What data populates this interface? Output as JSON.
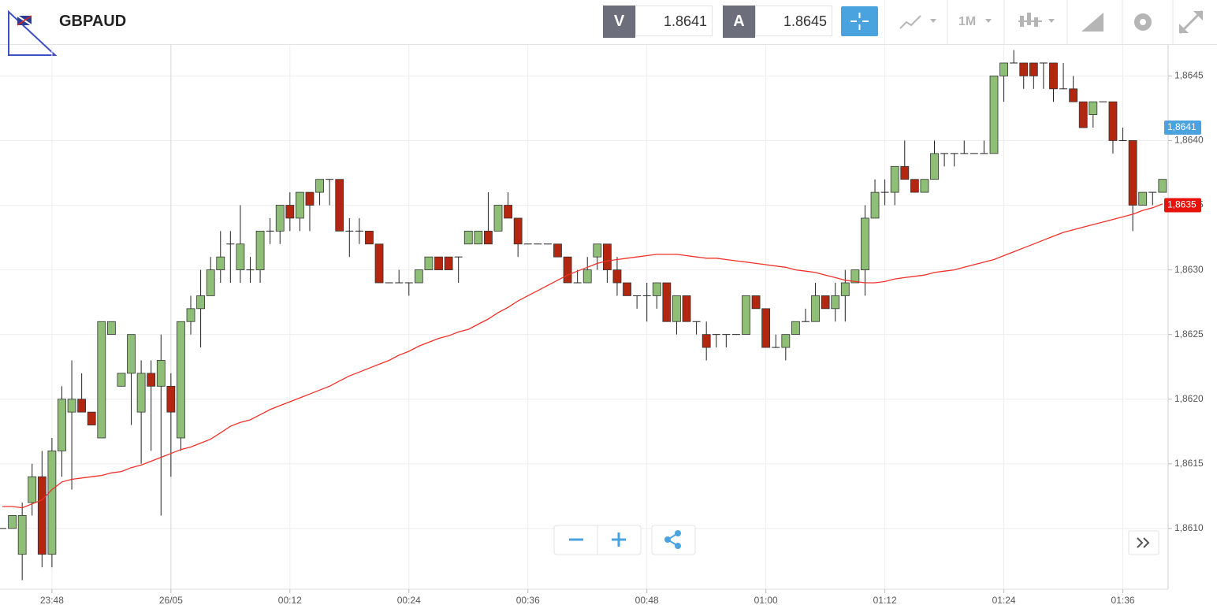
{
  "toolbar": {
    "symbol": "GBPAUD",
    "bid_label": "V",
    "bid": "1.8641",
    "ask_label": "A",
    "ask": "1.8645",
    "timeframe": "1M"
  },
  "chart_data": {
    "type": "candlestick",
    "categories": [
      null,
      null,
      null,
      null,
      null,
      "23:48",
      null,
      null,
      null,
      null,
      null,
      null,
      null,
      null,
      null,
      null,
      null,
      "26/05",
      null,
      null,
      null,
      null,
      null,
      null,
      null,
      null,
      null,
      null,
      null,
      "00:12",
      null,
      null,
      null,
      null,
      null,
      null,
      null,
      null,
      null,
      null,
      null,
      "00:24",
      null,
      null,
      null,
      null,
      null,
      null,
      null,
      null,
      null,
      null,
      null,
      "00:36",
      null,
      null,
      null,
      null,
      null,
      null,
      null,
      null,
      null,
      null,
      null,
      "00:48",
      null,
      null,
      null,
      null,
      null,
      null,
      null,
      null,
      null,
      null,
      null,
      "01:00",
      null,
      null,
      null,
      null,
      null,
      null,
      null,
      null,
      null,
      null,
      null,
      "01:12",
      null,
      null,
      null,
      null,
      null,
      null,
      null,
      null,
      null,
      null,
      null,
      "01:24",
      null,
      null,
      null,
      null,
      null,
      null,
      null,
      null,
      null,
      null,
      null,
      "01:36",
      null,
      null,
      null,
      null
    ],
    "open": [
      1.861,
      1.861,
      1.8608,
      1.8612,
      1.8614,
      1.8608,
      1.8616,
      1.8619,
      1.862,
      1.8619,
      1.8617,
      1.8625,
      1.8621,
      1.8622,
      1.8619,
      1.8622,
      1.8621,
      1.8621,
      1.8617,
      1.8626,
      1.8627,
      1.8628,
      1.863,
      1.8632,
      1.863,
      1.863,
      1.863,
      1.8633,
      1.8633,
      1.8635,
      1.8634,
      1.8636,
      1.8636,
      1.8637,
      1.8637,
      1.8633,
      1.8633,
      1.8633,
      1.8632,
      1.8629,
      1.8629,
      1.8629,
      1.8629,
      1.863,
      1.8631,
      1.8631,
      1.8631,
      1.8632,
      1.8632,
      1.8633,
      1.8633,
      1.8635,
      1.8634,
      1.8632,
      1.8632,
      1.8632,
      1.8632,
      1.8631,
      1.8629,
      1.8629,
      1.8631,
      1.8632,
      1.863,
      1.8629,
      1.8628,
      1.8628,
      1.8628,
      1.8629,
      1.8626,
      1.8628,
      1.8626,
      1.8625,
      1.8625,
      1.8625,
      1.8625,
      1.8625,
      1.8628,
      1.8627,
      1.8624,
      1.8624,
      1.8625,
      1.8626,
      1.8626,
      1.8628,
      1.8627,
      1.8628,
      1.8629,
      1.863,
      1.8634,
      1.8636,
      1.8636,
      1.8638,
      1.8637,
      1.8636,
      1.8637,
      1.8639,
      1.8639,
      1.8639,
      1.8639,
      1.8639,
      1.8639,
      1.8645,
      1.8646,
      1.8646,
      1.8646,
      1.8646,
      1.8646,
      1.8644,
      1.8644,
      1.8643,
      1.8642,
      1.8643,
      1.8643,
      1.864,
      1.864,
      1.8635,
      1.8636,
      1.8636
    ],
    "high": [
      1.861,
      1.8611,
      1.8612,
      1.8615,
      1.8616,
      1.8617,
      1.8621,
      1.8623,
      1.8622,
      1.8619,
      1.8626,
      1.8626,
      1.8622,
      1.8625,
      1.8623,
      1.8623,
      1.8625,
      1.8622,
      1.8626,
      1.8628,
      1.863,
      1.8631,
      1.8633,
      1.8633,
      1.8635,
      1.8631,
      1.8633,
      1.8634,
      1.8635,
      1.8636,
      1.8636,
      1.8636,
      1.8637,
      1.8637,
      1.8637,
      1.8634,
      1.8634,
      1.8633,
      1.8632,
      1.8629,
      1.863,
      1.8629,
      1.863,
      1.8631,
      1.8631,
      1.8631,
      1.8631,
      1.8633,
      1.8633,
      1.8636,
      1.8635,
      1.8636,
      1.8634,
      1.8632,
      1.8632,
      1.8632,
      1.8632,
      1.8631,
      1.863,
      1.8631,
      1.8632,
      1.8632,
      1.8631,
      1.8629,
      1.8628,
      1.8629,
      1.8629,
      1.8629,
      1.8628,
      1.8628,
      1.8626,
      1.8626,
      1.8625,
      1.8625,
      1.8625,
      1.8628,
      1.8628,
      1.8627,
      1.8625,
      1.8625,
      1.8626,
      1.8627,
      1.8629,
      1.8628,
      1.8629,
      1.863,
      1.863,
      1.8635,
      1.8637,
      1.8637,
      1.8638,
      1.864,
      1.8637,
      1.8637,
      1.864,
      1.8639,
      1.8639,
      1.864,
      1.8639,
      1.864,
      1.8645,
      1.8646,
      1.8647,
      1.8646,
      1.8646,
      1.8646,
      1.8646,
      1.8646,
      1.8645,
      1.8643,
      1.8643,
      1.8643,
      1.8643,
      1.8641,
      1.864,
      1.8636,
      1.8636,
      1.8637
    ],
    "low": [
      1.861,
      1.861,
      1.8606,
      1.8611,
      1.8607,
      1.8607,
      1.8614,
      1.8613,
      1.8619,
      1.8618,
      1.8617,
      1.8625,
      1.8621,
      1.8618,
      1.8615,
      1.8616,
      1.8611,
      1.8614,
      1.8616,
      1.8625,
      1.8624,
      1.8628,
      1.8629,
      1.8629,
      1.8629,
      1.8629,
      1.8629,
      1.8632,
      1.8632,
      1.8633,
      1.8633,
      1.8633,
      1.8635,
      1.8635,
      1.8633,
      1.8631,
      1.8632,
      1.8632,
      1.8629,
      1.8629,
      1.8629,
      1.8628,
      1.8629,
      1.863,
      1.863,
      1.863,
      1.8629,
      1.8632,
      1.8632,
      1.8632,
      1.8633,
      1.8634,
      1.8631,
      1.8632,
      1.8632,
      1.8632,
      1.8631,
      1.8629,
      1.8629,
      1.8629,
      1.863,
      1.8629,
      1.8628,
      1.8628,
      1.8627,
      1.8626,
      1.8627,
      1.8626,
      1.8625,
      1.8626,
      1.8625,
      1.8623,
      1.8624,
      1.8624,
      1.8625,
      1.8625,
      1.8627,
      1.8624,
      1.8624,
      1.8623,
      1.8625,
      1.8626,
      1.8626,
      1.8627,
      1.8626,
      1.8626,
      1.8629,
      1.8628,
      1.8634,
      1.8635,
      1.8635,
      1.8637,
      1.8636,
      1.8636,
      1.8637,
      1.8638,
      1.8638,
      1.8639,
      1.8639,
      1.8639,
      1.8639,
      1.8643,
      1.8646,
      1.8644,
      1.8644,
      1.8644,
      1.8643,
      1.8644,
      1.8643,
      1.8641,
      1.8641,
      1.8643,
      1.8639,
      1.864,
      1.8633,
      1.8635,
      1.8635,
      1.8636
    ],
    "close": [
      1.861,
      1.8611,
      1.8611,
      1.8614,
      1.8608,
      1.8616,
      1.862,
      1.862,
      1.8619,
      1.8618,
      1.8626,
      1.8626,
      1.8622,
      1.8625,
      1.8622,
      1.8621,
      1.8623,
      1.8619,
      1.8626,
      1.8627,
      1.8628,
      1.863,
      1.8631,
      1.8632,
      1.8632,
      1.863,
      1.8633,
      1.8633,
      1.8635,
      1.8634,
      1.8636,
      1.8635,
      1.8637,
      1.8637,
      1.8633,
      1.8633,
      1.8633,
      1.8632,
      1.8629,
      1.8629,
      1.8629,
      1.8629,
      1.863,
      1.8631,
      1.863,
      1.863,
      1.8631,
      1.8633,
      1.8633,
      1.8632,
      1.8635,
      1.8634,
      1.8632,
      1.8632,
      1.8632,
      1.8632,
      1.8631,
      1.8629,
      1.8629,
      1.863,
      1.8632,
      1.863,
      1.8629,
      1.8628,
      1.8628,
      1.8628,
      1.8629,
      1.8626,
      1.8628,
      1.8626,
      1.8626,
      1.8624,
      1.8625,
      1.8625,
      1.8625,
      1.8628,
      1.8627,
      1.8624,
      1.8624,
      1.8625,
      1.8626,
      1.8626,
      1.8628,
      1.8627,
      1.8628,
      1.8629,
      1.863,
      1.8634,
      1.8636,
      1.8636,
      1.8638,
      1.8637,
      1.8636,
      1.8637,
      1.8639,
      1.8639,
      1.8639,
      1.8639,
      1.8639,
      1.8639,
      1.8645,
      1.8646,
      1.8646,
      1.8645,
      1.8645,
      1.8646,
      1.8644,
      1.8644,
      1.8643,
      1.8641,
      1.8643,
      1.8643,
      1.864,
      1.864,
      1.8635,
      1.8636,
      1.8636,
      1.8637
    ],
    "up_color": "#8fbf77",
    "down_color": "#b3260f",
    "moving_average": {
      "color": "#f0312a",
      "values": [
        1.86117,
        1.86117,
        1.86116,
        1.86119,
        1.86122,
        1.8613,
        1.86136,
        1.86138,
        1.86139,
        1.8614,
        1.86141,
        1.86143,
        1.86144,
        1.86147,
        1.86149,
        1.86152,
        1.86155,
        1.86158,
        1.86161,
        1.86163,
        1.86166,
        1.86169,
        1.86174,
        1.86179,
        1.86182,
        1.86184,
        1.86188,
        1.86192,
        1.86195,
        1.86198,
        1.86201,
        1.86204,
        1.86207,
        1.8621,
        1.86214,
        1.86218,
        1.86221,
        1.86224,
        1.86227,
        1.8623,
        1.86234,
        1.86237,
        1.86241,
        1.86244,
        1.86247,
        1.86249,
        1.86252,
        1.86254,
        1.86258,
        1.86262,
        1.86267,
        1.86271,
        1.86276,
        1.8628,
        1.86284,
        1.86288,
        1.86292,
        1.86296,
        1.86299,
        1.86302,
        1.86305,
        1.86307,
        1.86308,
        1.86309,
        1.8631,
        1.86311,
        1.86312,
        1.86312,
        1.86312,
        1.86311,
        1.8631,
        1.86309,
        1.86309,
        1.86308,
        1.86307,
        1.86306,
        1.86305,
        1.86304,
        1.86303,
        1.86302,
        1.863,
        1.86299,
        1.86298,
        1.86296,
        1.86294,
        1.86292,
        1.86291,
        1.8629,
        1.8629,
        1.86291,
        1.86293,
        1.86294,
        1.86295,
        1.86296,
        1.86298,
        1.86299,
        1.863,
        1.86302,
        1.86304,
        1.86306,
        1.86308,
        1.86311,
        1.86314,
        1.86317,
        1.8632,
        1.86323,
        1.86326,
        1.86329,
        1.86331,
        1.86333,
        1.86335,
        1.86337,
        1.86339,
        1.86341,
        1.86343,
        1.86346,
        1.86348,
        1.86351
      ]
    },
    "ylim": [
      1.86053,
      1.86474
    ],
    "yticks": [
      {
        "value": 1.861,
        "label": "1,8610"
      },
      {
        "value": 1.8615,
        "label": "1,8615"
      },
      {
        "value": 1.862,
        "label": "1,8620"
      },
      {
        "value": 1.8625,
        "label": "1,8625"
      },
      {
        "value": 1.863,
        "label": "1,8630"
      },
      {
        "value": 1.8635,
        "label": "1,8635"
      },
      {
        "value": 1.864,
        "label": "1,8640"
      },
      {
        "value": 1.8645,
        "label": "1,8645"
      }
    ],
    "price_markers": [
      {
        "value": 1.8641,
        "label": "1,8641",
        "color": "#4aa3df"
      },
      {
        "value": 1.8635,
        "label": "1,8635",
        "color": "#e8120c"
      }
    ],
    "grid": true
  }
}
